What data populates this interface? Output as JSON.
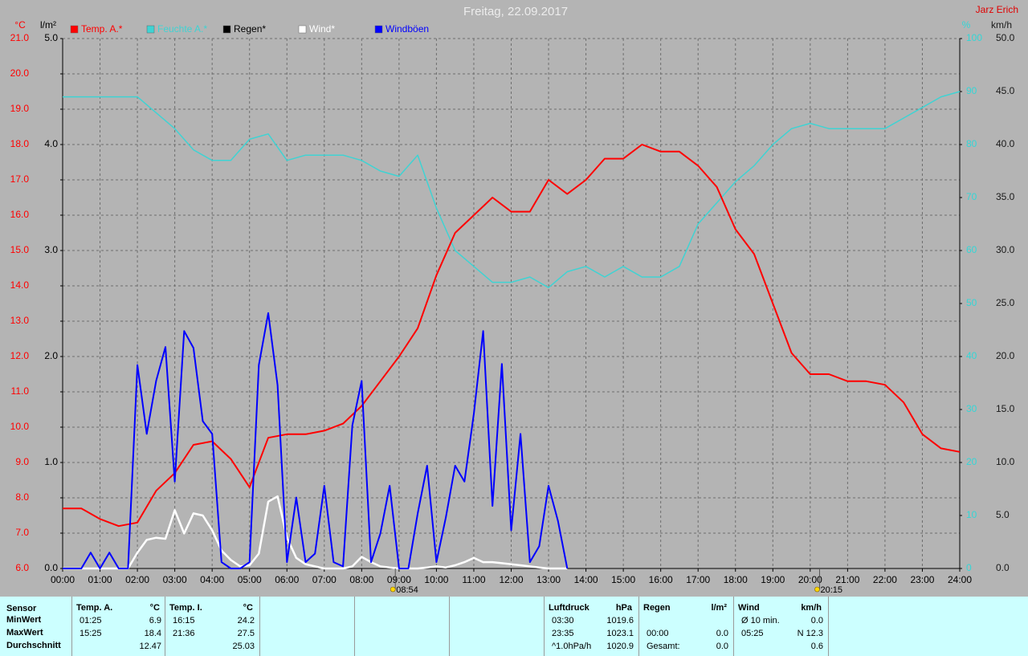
{
  "chart_data": {
    "type": "line",
    "title": "Freitag, 22.09.2017",
    "author": "Jarz Erich",
    "xlim": [
      0,
      24
    ],
    "xticks": [
      {
        "value": 0,
        "label": "00:00"
      },
      {
        "value": 1,
        "label": "01:00"
      },
      {
        "value": 2,
        "label": "02:00"
      },
      {
        "value": 3,
        "label": "03:00"
      },
      {
        "value": 4,
        "label": "04:00"
      },
      {
        "value": 5,
        "label": "05:00"
      },
      {
        "value": 6,
        "label": "06:00"
      },
      {
        "value": 7,
        "label": "07:00"
      },
      {
        "value": 8,
        "label": "08:00"
      },
      {
        "value": 9,
        "label": "09:00"
      },
      {
        "value": 10,
        "label": "10:00"
      },
      {
        "value": 11,
        "label": "11:00"
      },
      {
        "value": 12,
        "label": "12:00"
      },
      {
        "value": 13,
        "label": "13:00"
      },
      {
        "value": 14,
        "label": "14:00"
      },
      {
        "value": 15,
        "label": "15:00"
      },
      {
        "value": 16,
        "label": "16:00"
      },
      {
        "value": 17,
        "label": "17:00"
      },
      {
        "value": 18,
        "label": "18:00"
      },
      {
        "value": 19,
        "label": "19:00"
      },
      {
        "value": 20,
        "label": "20:00"
      },
      {
        "value": 21,
        "label": "21:00"
      },
      {
        "value": 22,
        "label": "22:00"
      },
      {
        "value": 23,
        "label": "23:00"
      },
      {
        "value": 24,
        "label": "24:00"
      }
    ],
    "grid": true,
    "axes": [
      {
        "label": "°C",
        "color": "#ff0000",
        "ylim": [
          6,
          21
        ],
        "yticks": [
          {
            "value": 6,
            "label": "6.0"
          },
          {
            "value": 7,
            "label": "7.0"
          },
          {
            "value": 8,
            "label": "8.0"
          },
          {
            "value": 9,
            "label": "9.0"
          },
          {
            "value": 10,
            "label": "10.0"
          },
          {
            "value": 11,
            "label": "11.0"
          },
          {
            "value": 12,
            "label": "12.0"
          },
          {
            "value": 13,
            "label": "13.0"
          },
          {
            "value": 14,
            "label": "14.0"
          },
          {
            "value": 15,
            "label": "15.0"
          },
          {
            "value": 16,
            "label": "16.0"
          },
          {
            "value": 17,
            "label": "17.0"
          },
          {
            "value": 18,
            "label": "18.0"
          },
          {
            "value": 19,
            "label": "19.0"
          },
          {
            "value": 20,
            "label": "20.0"
          },
          {
            "value": 21,
            "label": "21.0"
          }
        ]
      },
      {
        "label": "l/m²",
        "color": "#000000",
        "ylim": [
          0,
          5
        ],
        "yticks": [
          {
            "value": 0,
            "label": "0.0"
          },
          {
            "value": 1,
            "label": "1.0"
          },
          {
            "value": 2,
            "label": "2.0"
          },
          {
            "value": 3,
            "label": "3.0"
          },
          {
            "value": 4,
            "label": "4.0"
          },
          {
            "value": 5,
            "label": "5.0"
          }
        ]
      },
      {
        "label": "%",
        "color": "#33d6d6",
        "ylim": [
          0,
          100
        ],
        "yticks": [
          0,
          10,
          20,
          30,
          40,
          50,
          60,
          70,
          80,
          90,
          100
        ]
      },
      {
        "label": "km/h",
        "color": "#1a1a1a",
        "ylim": [
          0,
          50
        ],
        "yticks": [
          {
            "value": 0,
            "label": "0.0"
          },
          {
            "value": 5,
            "label": "5.0"
          },
          {
            "value": 10,
            "label": "10.0"
          },
          {
            "value": 15,
            "label": "15.0"
          },
          {
            "value": 20,
            "label": "20.0"
          },
          {
            "value": 25,
            "label": "25.0"
          },
          {
            "value": 30,
            "label": "30.0"
          },
          {
            "value": 35,
            "label": "35.0"
          },
          {
            "value": 40,
            "label": "40.0"
          },
          {
            "value": 45,
            "label": "45.0"
          },
          {
            "value": 50,
            "label": "50.0"
          }
        ]
      }
    ],
    "series": [
      {
        "name": "Temp. A.*",
        "color": "#ff0000",
        "axis": 0,
        "x": [
          0,
          0.5,
          1,
          1.5,
          2,
          2.5,
          3,
          3.5,
          4,
          4.5,
          5,
          5.5,
          6,
          6.5,
          7,
          7.5,
          8,
          8.5,
          9,
          9.5,
          10,
          10.5,
          11,
          11.5,
          12,
          12.5,
          13,
          13.5,
          14,
          14.5,
          15,
          15.5,
          16,
          16.5,
          17,
          17.5,
          18,
          18.5,
          19,
          19.5,
          20,
          20.5,
          21,
          21.5,
          22,
          22.5,
          23,
          23.5,
          24
        ],
        "values": [
          7.7,
          7.7,
          7.4,
          7.2,
          7.3,
          8.2,
          8.7,
          9.5,
          9.6,
          9.1,
          8.3,
          9.7,
          9.8,
          9.8,
          9.9,
          10.1,
          10.6,
          11.3,
          12.0,
          12.8,
          14.3,
          15.5,
          16.0,
          16.5,
          16.1,
          16.1,
          17.0,
          16.6,
          17.0,
          17.6,
          17.6,
          18.0,
          17.8,
          17.8,
          17.4,
          16.8,
          15.6,
          14.9,
          13.5,
          12.1,
          11.5,
          11.5,
          11.3,
          11.3,
          11.2,
          10.7,
          9.8,
          9.4,
          9.3
        ]
      },
      {
        "name": "Feuchte A.*",
        "color": "#3fd3d3",
        "axis": 2,
        "x": [
          0,
          0.5,
          1,
          1.5,
          2,
          2.5,
          3,
          3.5,
          4,
          4.5,
          5,
          5.5,
          6,
          6.5,
          7,
          7.5,
          8,
          8.5,
          9,
          9.5,
          10,
          10.5,
          11,
          11.5,
          12,
          12.5,
          13,
          13.5,
          14,
          14.5,
          15,
          15.5,
          16,
          16.5,
          17,
          17.5,
          18,
          18.5,
          19,
          19.5,
          20,
          20.5,
          21,
          21.5,
          22,
          22.5,
          23,
          23.5,
          24
        ],
        "values": [
          89,
          89,
          89,
          89,
          89,
          86,
          83,
          79,
          77,
          77,
          81,
          82,
          77,
          78,
          78,
          78,
          77,
          75,
          74,
          78,
          68,
          60,
          57,
          54,
          54,
          55,
          53,
          56,
          57,
          55,
          57,
          55,
          55,
          57,
          65,
          69,
          73,
          76,
          80,
          83,
          84,
          83,
          83,
          83,
          83,
          85,
          87,
          89,
          90
        ]
      },
      {
        "name": "Regen*",
        "color": "#000000",
        "axis": 1
      },
      {
        "name": "Wind*",
        "color": "#ffffff",
        "axis": 3,
        "x": [
          0,
          0.25,
          0.5,
          0.75,
          1,
          1.25,
          1.5,
          1.75,
          2,
          2.25,
          2.5,
          2.75,
          3,
          3.25,
          3.5,
          3.75,
          4,
          4.25,
          4.5,
          4.75,
          5,
          5.25,
          5.5,
          5.75,
          6,
          6.25,
          6.5,
          6.75,
          7,
          7.25,
          7.5,
          7.75,
          8,
          8.25,
          8.5,
          8.75,
          9,
          9.25,
          9.5,
          9.75,
          10,
          10.25,
          10.5,
          10.75,
          11,
          11.25,
          11.5,
          11.75,
          12,
          12.25,
          12.5,
          12.75,
          13,
          13.25,
          13.5
        ],
        "values": [
          0,
          0,
          0,
          0,
          0,
          0,
          0,
          0,
          1.5,
          2.7,
          2.9,
          2.8,
          5.5,
          3.3,
          5.2,
          5.0,
          3.6,
          1.7,
          0.8,
          0.2,
          0.3,
          1.4,
          6.3,
          6.8,
          2.9,
          1.0,
          0.4,
          0.2,
          0,
          0,
          0,
          0.2,
          1.1,
          0.6,
          0.2,
          0.1,
          0,
          0,
          0,
          0.1,
          0.2,
          0.1,
          0.3,
          0.6,
          1.0,
          0.6,
          0.6,
          0.5,
          0.4,
          0.3,
          0.2,
          0.1,
          0,
          0,
          0
        ]
      },
      {
        "name": "Windböen",
        "color": "#0000ff",
        "axis": 3,
        "x": [
          0,
          0.25,
          0.5,
          0.75,
          1,
          1.25,
          1.5,
          1.75,
          2,
          2.25,
          2.5,
          2.75,
          3,
          3.25,
          3.5,
          3.75,
          4,
          4.25,
          4.5,
          4.75,
          5,
          5.25,
          5.5,
          5.75,
          6,
          6.25,
          6.5,
          6.75,
          7,
          7.25,
          7.5,
          7.75,
          8,
          8.25,
          8.5,
          8.75,
          9,
          9.25,
          9.5,
          9.75,
          10,
          10.25,
          10.5,
          10.75,
          11,
          11.25,
          11.5,
          11.75,
          12,
          12.25,
          12.5,
          12.75,
          13,
          13.25,
          13.5
        ],
        "values": [
          0,
          0,
          0,
          1.5,
          0,
          1.5,
          0,
          0,
          19.2,
          12.7,
          17.7,
          20.9,
          8.2,
          22.4,
          20.8,
          13.9,
          12.7,
          0.6,
          0,
          0,
          0.6,
          19.2,
          24.1,
          17.3,
          0.6,
          6.7,
          0.6,
          1.4,
          7.8,
          0.6,
          0.2,
          13.5,
          17.7,
          0.6,
          3.3,
          7.8,
          0,
          0,
          5.2,
          9.7,
          0.6,
          4.8,
          9.7,
          8.2,
          14.6,
          22.4,
          5.9,
          19.3,
          3.6,
          12.7,
          0.6,
          2.1,
          7.8,
          4.5,
          0
        ]
      }
    ],
    "annotations": [
      {
        "x": 8.9,
        "label": "08:54"
      },
      {
        "x": 20.25,
        "label": "20:15"
      }
    ]
  },
  "table": {
    "header": "Sensor",
    "row_labels": [
      "MinWert",
      "MaxWert",
      "Durchschnitt"
    ],
    "columns": [
      {
        "header": "Temp. A.",
        "unit": "°C",
        "rows": [
          [
            "01:25",
            "6.9"
          ],
          [
            "15:25",
            "18.4"
          ],
          [
            null,
            "12.47"
          ]
        ]
      },
      {
        "header": "Temp. I.",
        "unit": "°C",
        "rows": [
          [
            "16:15",
            "24.2"
          ],
          [
            "21:36",
            "27.5"
          ],
          [
            null,
            "25.03"
          ]
        ]
      },
      {
        "header": "Luftdruck",
        "unit": "hPa",
        "rows": [
          [
            "03:30",
            "1019.6"
          ],
          [
            "23:35",
            "1023.1"
          ],
          [
            "^1.0hPa/h",
            "1020.9"
          ]
        ]
      },
      {
        "header": "Regen",
        "unit": "l/m²",
        "rows": [
          [
            null,
            null
          ],
          [
            "00:00",
            "0.0"
          ],
          [
            "Gesamt:",
            "0.0"
          ]
        ]
      },
      {
        "header": "Wind",
        "unit": "km/h",
        "rows": [
          [
            "Ø 10 min.",
            "0.0"
          ],
          [
            "05:25",
            "N 12.3"
          ],
          [
            null,
            "0.6"
          ]
        ]
      }
    ]
  }
}
